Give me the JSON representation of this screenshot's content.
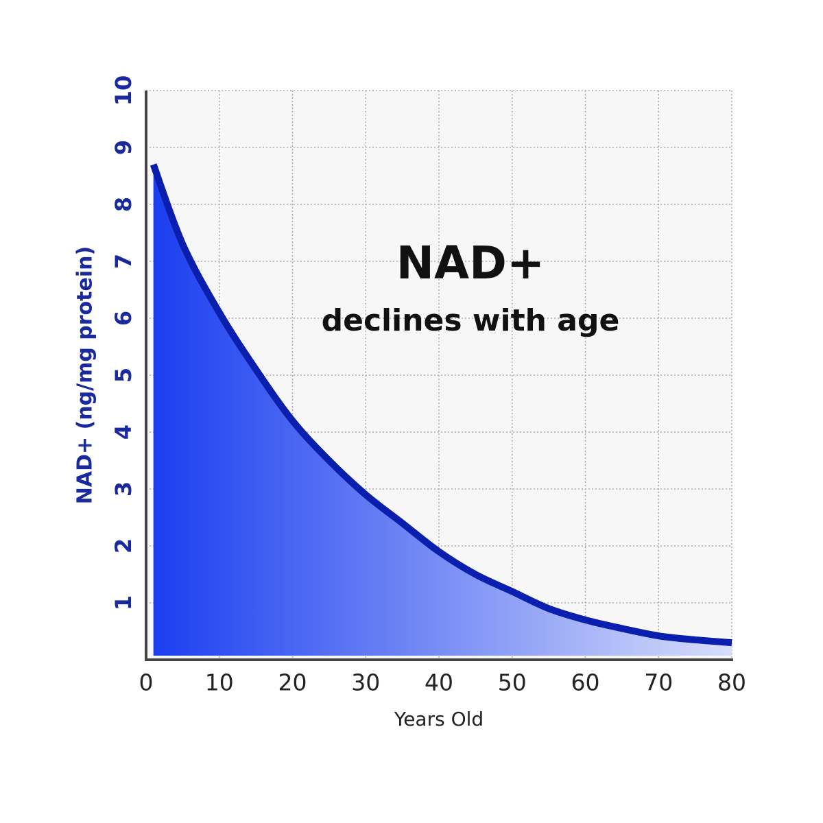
{
  "chart_data": {
    "type": "area",
    "title": "NAD+",
    "subtitle": "declines with age",
    "x_label": "Years Old",
    "y_label": "NAD+ (ng/mg protein)",
    "x": [
      1,
      5,
      10,
      15,
      20,
      25,
      30,
      35,
      40,
      45,
      50,
      55,
      60,
      65,
      70,
      75,
      80
    ],
    "series": [
      {
        "color": "#0a1fae",
        "fill_gradient": [
          "#1b3ff0",
          "#d8defa"
        ],
        "values": [
          8.7,
          7.3,
          6.1,
          5.1,
          4.2,
          3.5,
          2.9,
          2.4,
          1.9,
          1.5,
          1.2,
          0.9,
          0.7,
          0.55,
          0.42,
          0.35,
          0.3
        ]
      }
    ],
    "xlim": [
      0,
      80
    ],
    "xticks": [
      0,
      10,
      20,
      30,
      40,
      50,
      60,
      70,
      80
    ],
    "ylim": [
      0,
      10
    ],
    "yticks": [
      1,
      2,
      3,
      4,
      5,
      6,
      7,
      8,
      9,
      10
    ],
    "grid": true
  }
}
